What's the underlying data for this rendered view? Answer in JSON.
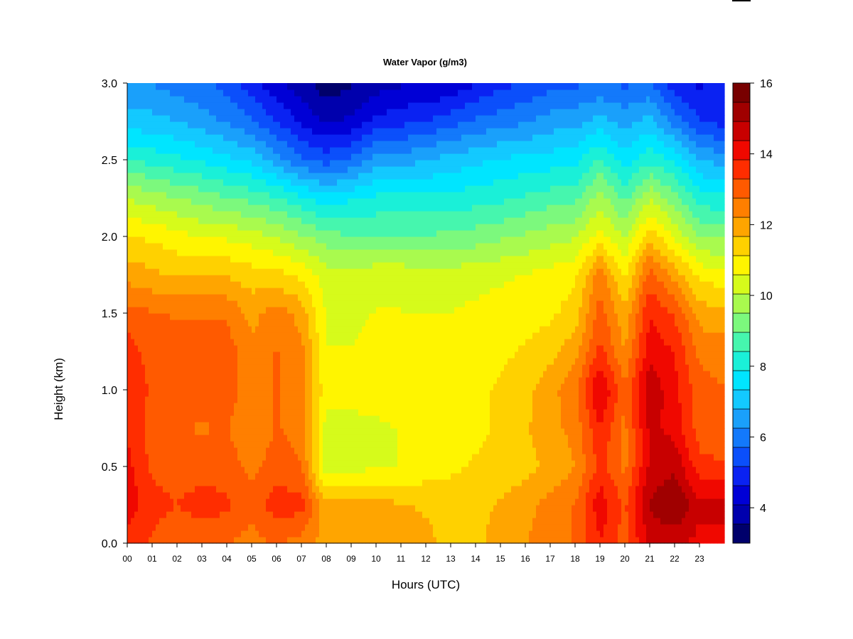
{
  "chart_data": {
    "type": "heatmap",
    "title": "Water Vapor (g/m3)",
    "xlabel": "Hours (UTC)",
    "ylabel": "Height (km)",
    "xlim": [
      0,
      24
    ],
    "ylim": [
      0.0,
      3.0
    ],
    "x_ticks": [
      "00",
      "01",
      "02",
      "03",
      "04",
      "05",
      "06",
      "07",
      "08",
      "09",
      "10",
      "11",
      "12",
      "13",
      "14",
      "15",
      "16",
      "17",
      "18",
      "19",
      "20",
      "21",
      "22",
      "23"
    ],
    "y_ticks": [
      "0.0",
      "0.5",
      "1.0",
      "1.5",
      "2.0",
      "2.5",
      "3.0"
    ],
    "colorbar": {
      "min": 3,
      "max": 16,
      "ticks": [
        "4",
        "6",
        "8",
        "10",
        "12",
        "14",
        "16"
      ],
      "colors": [
        "#00006b",
        "#0000ad",
        "#0000d6",
        "#0a22f2",
        "#0b4ffb",
        "#1379fb",
        "#1aa0fb",
        "#13c9ff",
        "#00e5ff",
        "#1af0d8",
        "#46f6ae",
        "#7cf97d",
        "#a9fa4e",
        "#d6fb1b",
        "#fff500",
        "#ffd100",
        "#ffa500",
        "#ff7f00",
        "#ff5a00",
        "#ff2d00",
        "#f00800",
        "#c80000",
        "#a00000",
        "#780000"
      ]
    },
    "height_levels_km": [
      0.0,
      0.25,
      0.5,
      0.75,
      1.0,
      1.25,
      1.5,
      1.75,
      2.0,
      2.25,
      2.5,
      2.75,
      3.0
    ],
    "series": [
      {
        "hour": 0.0,
        "values": [
          13.5,
          14.2,
          14.0,
          13.8,
          13.8,
          13.6,
          13.0,
          12.0,
          11.2,
          10.0,
          8.5,
          7.0,
          6.5
        ]
      },
      {
        "hour": 1.0,
        "values": [
          13.2,
          13.5,
          13.2,
          13.0,
          13.2,
          13.0,
          12.8,
          11.8,
          11.0,
          9.8,
          8.2,
          7.0,
          6.2
        ]
      },
      {
        "hour": 2.0,
        "values": [
          12.8,
          13.3,
          13.0,
          12.8,
          13.0,
          13.0,
          12.7,
          11.6,
          10.8,
          9.5,
          8.0,
          6.8,
          6.0
        ]
      },
      {
        "hour": 3.0,
        "values": [
          12.8,
          13.6,
          13.0,
          12.7,
          13.0,
          13.0,
          12.7,
          11.6,
          10.5,
          9.3,
          7.8,
          6.5,
          5.8
        ]
      },
      {
        "hour": 4.0,
        "values": [
          12.8,
          13.4,
          13.0,
          12.8,
          13.0,
          13.0,
          12.7,
          11.6,
          10.5,
          9.0,
          7.5,
          6.2,
          5.5
        ]
      },
      {
        "hour": 5.0,
        "values": [
          12.5,
          13.0,
          12.6,
          12.3,
          12.5,
          12.4,
          12.0,
          11.4,
          10.3,
          8.8,
          7.2,
          5.8,
          4.8
        ]
      },
      {
        "hour": 6.0,
        "values": [
          12.8,
          13.6,
          13.0,
          12.8,
          12.8,
          12.8,
          12.5,
          11.3,
          10.0,
          8.5,
          6.5,
          5.2,
          4.2
        ]
      },
      {
        "hour": 7.0,
        "values": [
          12.5,
          13.5,
          12.8,
          12.5,
          12.5,
          12.4,
          12.0,
          11.0,
          9.6,
          8.0,
          5.8,
          4.5,
          3.8
        ]
      },
      {
        "hour": 8.0,
        "values": [
          12.0,
          11.8,
          10.2,
          10.4,
          10.8,
          10.6,
          10.5,
          10.3,
          9.2,
          7.5,
          5.5,
          4.0,
          3.2
        ]
      },
      {
        "hour": 9.0,
        "values": [
          12.0,
          11.9,
          10.4,
          10.4,
          10.8,
          10.6,
          10.5,
          10.3,
          9.0,
          7.8,
          5.8,
          4.2,
          3.5
        ]
      },
      {
        "hour": 10.0,
        "values": [
          12.2,
          12.0,
          10.5,
          10.5,
          10.8,
          10.7,
          10.6,
          10.4,
          9.0,
          8.0,
          6.5,
          4.8,
          3.8
        ]
      },
      {
        "hour": 11.0,
        "values": [
          12.0,
          11.7,
          10.6,
          10.6,
          10.8,
          10.7,
          10.6,
          10.4,
          9.0,
          8.0,
          6.5,
          5.0,
          4.0
        ]
      },
      {
        "hour": 12.0,
        "values": [
          11.8,
          11.6,
          10.8,
          10.6,
          10.9,
          10.8,
          10.6,
          10.3,
          9.0,
          8.0,
          6.8,
          5.2,
          4.0
        ]
      },
      {
        "hour": 13.0,
        "values": [
          11.5,
          11.5,
          11.0,
          10.8,
          11.0,
          10.8,
          10.6,
          10.3,
          9.1,
          8.0,
          7.0,
          5.5,
          4.2
        ]
      },
      {
        "hour": 14.0,
        "values": [
          11.5,
          11.3,
          11.2,
          11.0,
          11.0,
          10.9,
          10.7,
          10.4,
          9.2,
          8.2,
          7.2,
          5.8,
          4.6
        ]
      },
      {
        "hour": 15.0,
        "values": [
          12.0,
          11.8,
          11.2,
          11.2,
          11.2,
          11.0,
          10.8,
          10.5,
          9.4,
          8.3,
          7.4,
          6.0,
          5.0
        ]
      },
      {
        "hour": 16.0,
        "values": [
          12.2,
          12.0,
          11.5,
          11.6,
          11.5,
          11.2,
          10.9,
          10.6,
          9.6,
          8.5,
          7.5,
          6.2,
          5.2
        ]
      },
      {
        "hour": 17.0,
        "values": [
          12.5,
          12.4,
          11.8,
          12.0,
          12.0,
          11.5,
          11.0,
          10.8,
          9.8,
          8.7,
          7.6,
          6.5,
          5.5
        ]
      },
      {
        "hour": 18.0,
        "values": [
          12.8,
          12.8,
          12.2,
          12.4,
          12.6,
          12.0,
          11.4,
          11.0,
          10.0,
          8.8,
          7.7,
          6.6,
          5.6
        ]
      },
      {
        "hour": 19.0,
        "values": [
          13.8,
          14.2,
          13.5,
          13.8,
          14.5,
          13.5,
          13.0,
          12.5,
          10.8,
          9.8,
          8.5,
          7.0,
          5.8
        ]
      },
      {
        "hour": 20.0,
        "values": [
          13.0,
          13.2,
          12.6,
          12.6,
          12.8,
          12.2,
          11.8,
          11.0,
          10.0,
          8.8,
          7.6,
          6.6,
          5.6
        ]
      },
      {
        "hour": 21.0,
        "values": [
          14.5,
          15.0,
          14.5,
          14.5,
          14.8,
          14.2,
          13.8,
          13.0,
          11.5,
          10.0,
          8.3,
          7.0,
          5.8
        ]
      },
      {
        "hour": 22.0,
        "values": [
          14.5,
          15.5,
          14.8,
          14.2,
          14.0,
          13.8,
          13.2,
          12.0,
          10.5,
          9.2,
          7.8,
          6.0,
          4.8
        ]
      },
      {
        "hour": 23.0,
        "values": [
          14.2,
          14.5,
          13.5,
          13.0,
          13.0,
          12.6,
          12.0,
          11.0,
          9.5,
          8.2,
          6.8,
          5.2,
          4.5
        ]
      },
      {
        "hour": 23.8,
        "values": [
          14.2,
          14.5,
          13.4,
          12.8,
          12.8,
          12.5,
          11.8,
          10.8,
          9.4,
          8.0,
          6.6,
          5.0,
          4.8
        ]
      }
    ],
    "grid": false,
    "legend": "colorbar-right"
  }
}
